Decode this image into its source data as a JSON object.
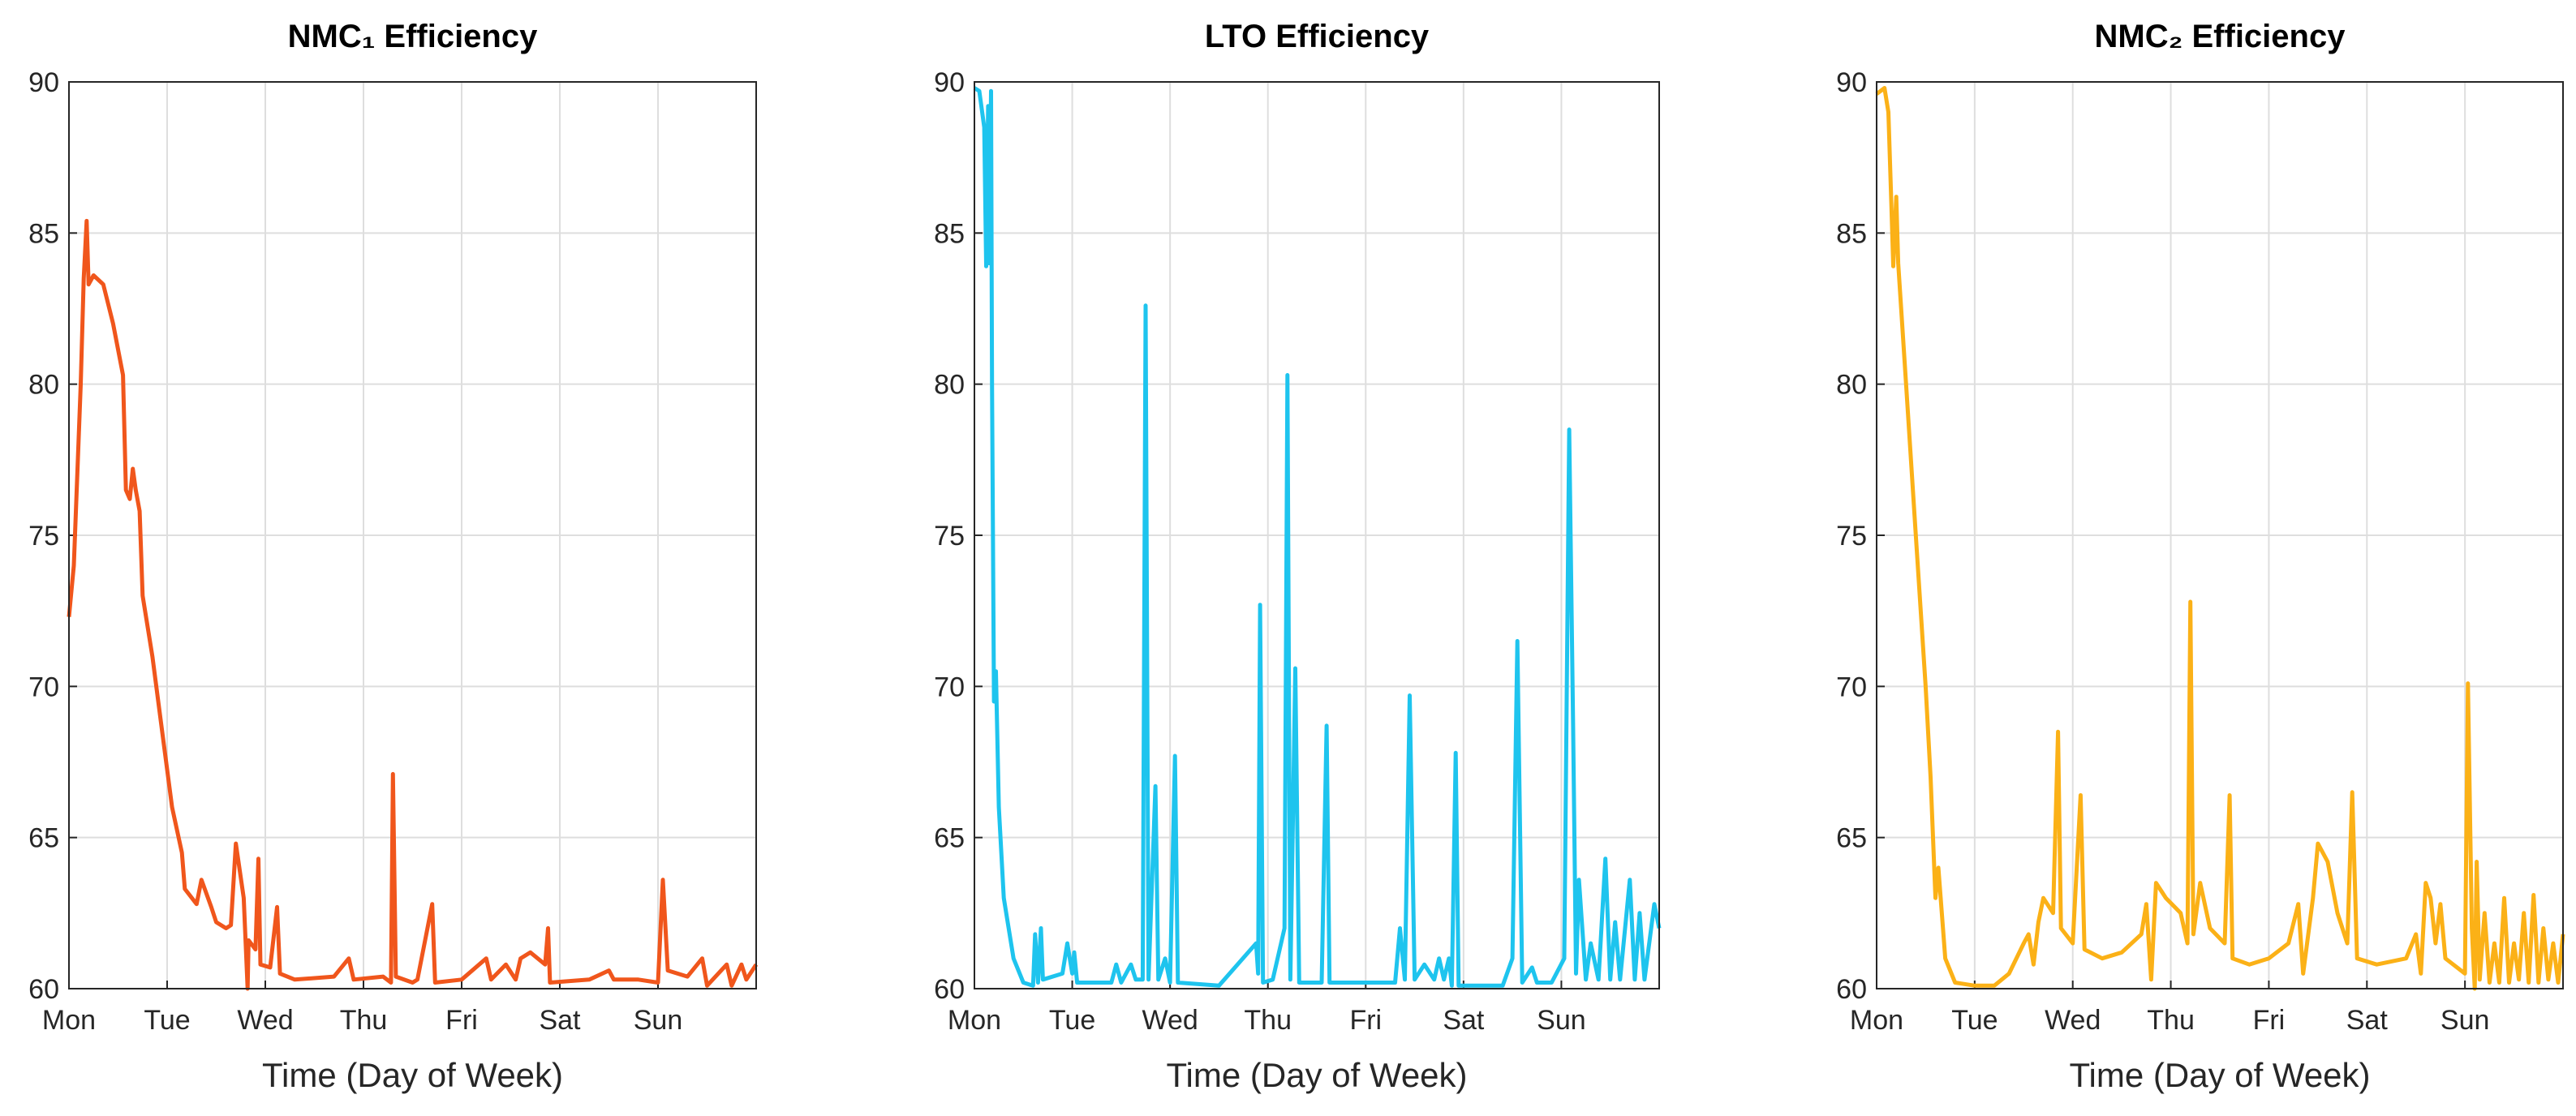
{
  "chart_data": [
    {
      "type": "line",
      "title": "NMC₁ Efficiency",
      "xlabel": "Time (Day of Week)",
      "grid": true,
      "xlim": [
        0,
        7
      ],
      "ylim": [
        60,
        90
      ],
      "xticks": [
        {
          "value": 0,
          "label": "Mon"
        },
        {
          "value": 1,
          "label": "Tue"
        },
        {
          "value": 2,
          "label": "Wed"
        },
        {
          "value": 3,
          "label": "Thu"
        },
        {
          "value": 4,
          "label": "Fri"
        },
        {
          "value": 5,
          "label": "Sat"
        },
        {
          "value": 6,
          "label": "Sun"
        }
      ],
      "yticks": [
        60,
        65,
        70,
        75,
        80,
        85,
        90
      ],
      "x": [
        0,
        0.05,
        0.12,
        0.15,
        0.18,
        0.2,
        0.25,
        0.35,
        0.45,
        0.55,
        0.58,
        0.62,
        0.65,
        0.68,
        0.72,
        0.75,
        0.85,
        0.95,
        1.05,
        1.15,
        1.18,
        1.3,
        1.35,
        1.45,
        1.5,
        1.6,
        1.65,
        1.7,
        1.78,
        1.82,
        1.83,
        1.9,
        1.93,
        1.95,
        2.05,
        2.12,
        2.15,
        2.3,
        2.7,
        2.85,
        2.9,
        3.2,
        3.28,
        3.3,
        3.33,
        3.5,
        3.55,
        3.7,
        3.73,
        4.0,
        4.25,
        4.3,
        4.45,
        4.55,
        4.6,
        4.7,
        4.85,
        4.88,
        4.9,
        5.3,
        5.5,
        5.55,
        5.8,
        6.0,
        6.05,
        6.1,
        6.3,
        6.45,
        6.5,
        6.7,
        6.75,
        6.85,
        6.9,
        7
      ],
      "series": [
        {
          "color": "#f0561c",
          "values": [
            72.3,
            74,
            80,
            83.5,
            85.4,
            83.3,
            83.6,
            83.3,
            82,
            80.3,
            76.5,
            76.2,
            77.2,
            76.5,
            75.8,
            73,
            71,
            68.5,
            66,
            64.5,
            63.3,
            62.8,
            63.6,
            62.7,
            62.2,
            62,
            62.1,
            64.8,
            63,
            60,
            61.6,
            61.3,
            64.3,
            60.8,
            60.7,
            62.7,
            60.5,
            60.3,
            60.4,
            61,
            60.3,
            60.4,
            60.2,
            67.1,
            60.4,
            60.2,
            60.3,
            62.8,
            60.2,
            60.3,
            61,
            60.3,
            60.8,
            60.3,
            61,
            61.2,
            60.8,
            62,
            60.2,
            60.3,
            60.6,
            60.3,
            60.3,
            60.2,
            63.6,
            60.6,
            60.4,
            61,
            60.1,
            60.8,
            60.1,
            60.8,
            60.3,
            60.8
          ]
        }
      ]
    },
    {
      "type": "line",
      "title": "LTO Efficiency",
      "xlabel": "Time (Day of Week)",
      "grid": true,
      "xlim": [
        0,
        7
      ],
      "ylim": [
        60,
        90
      ],
      "xticks": [
        {
          "value": 0,
          "label": "Mon"
        },
        {
          "value": 1,
          "label": "Tue"
        },
        {
          "value": 2,
          "label": "Wed"
        },
        {
          "value": 3,
          "label": "Thu"
        },
        {
          "value": 4,
          "label": "Fri"
        },
        {
          "value": 5,
          "label": "Sat"
        },
        {
          "value": 6,
          "label": "Sun"
        }
      ],
      "yticks": [
        60,
        65,
        70,
        75,
        80,
        85,
        90
      ],
      "x": [
        0,
        0.05,
        0.1,
        0.12,
        0.14,
        0.15,
        0.17,
        0.18,
        0.2,
        0.22,
        0.25,
        0.3,
        0.4,
        0.5,
        0.6,
        0.62,
        0.65,
        0.68,
        0.7,
        0.9,
        0.95,
        1.0,
        1.02,
        1.05,
        1.4,
        1.45,
        1.5,
        1.6,
        1.65,
        1.72,
        1.75,
        1.78,
        1.85,
        1.88,
        1.95,
        2.0,
        2.05,
        2.08,
        2.5,
        2.88,
        2.9,
        2.92,
        2.95,
        3.05,
        3.17,
        3.2,
        3.23,
        3.28,
        3.32,
        3.55,
        3.6,
        3.63,
        4.3,
        4.35,
        4.4,
        4.45,
        4.5,
        4.6,
        4.7,
        4.75,
        4.8,
        4.85,
        4.88,
        4.92,
        4.95,
        5.4,
        5.5,
        5.55,
        5.6,
        5.7,
        5.75,
        5.9,
        6.03,
        6.08,
        6.12,
        6.15,
        6.18,
        6.25,
        6.3,
        6.38,
        6.45,
        6.5,
        6.55,
        6.6,
        6.7,
        6.75,
        6.8,
        6.85,
        6.95,
        7
      ],
      "series": [
        {
          "color": "#1ec4ee",
          "values": [
            89.8,
            89.7,
            88.5,
            83.9,
            89.2,
            84,
            89.7,
            80,
            69.5,
            70.5,
            66,
            63,
            61,
            60.2,
            60.1,
            61.8,
            60.2,
            62,
            60.3,
            60.5,
            61.5,
            60.5,
            61.2,
            60.2,
            60.2,
            60.8,
            60.2,
            60.8,
            60.3,
            60.3,
            82.6,
            60.3,
            66.7,
            60.3,
            61,
            60.2,
            67.7,
            60.2,
            60.1,
            61.5,
            60.5,
            72.7,
            60.2,
            60.3,
            62,
            80.3,
            60.3,
            70.6,
            60.2,
            60.2,
            68.7,
            60.2,
            60.2,
            62,
            60.3,
            69.7,
            60.3,
            60.8,
            60.3,
            61,
            60.3,
            61,
            60.1,
            67.8,
            60.1,
            60.1,
            61,
            71.5,
            60.2,
            60.7,
            60.2,
            60.2,
            61,
            78.5,
            68.7,
            60.5,
            63.6,
            60.3,
            61.5,
            60.3,
            64.3,
            60.3,
            62.2,
            60.3,
            63.6,
            60.3,
            62.5,
            60.3,
            62.8,
            62
          ]
        }
      ]
    },
    {
      "type": "line",
      "title": "NMC₂ Efficiency",
      "xlabel": "Time (Day of Week)",
      "grid": true,
      "xlim": [
        0,
        7
      ],
      "ylim": [
        60,
        90
      ],
      "xticks": [
        {
          "value": 0,
          "label": "Mon"
        },
        {
          "value": 1,
          "label": "Tue"
        },
        {
          "value": 2,
          "label": "Wed"
        },
        {
          "value": 3,
          "label": "Thu"
        },
        {
          "value": 4,
          "label": "Fri"
        },
        {
          "value": 5,
          "label": "Sat"
        },
        {
          "value": 6,
          "label": "Sun"
        }
      ],
      "yticks": [
        60,
        65,
        70,
        75,
        80,
        85,
        90
      ],
      "x": [
        0,
        0.08,
        0.12,
        0.15,
        0.17,
        0.2,
        0.22,
        0.3,
        0.4,
        0.5,
        0.55,
        0.6,
        0.63,
        0.7,
        0.8,
        1.0,
        1.2,
        1.35,
        1.5,
        1.55,
        1.6,
        1.65,
        1.7,
        1.8,
        1.85,
        1.88,
        2.0,
        2.08,
        2.12,
        2.3,
        2.5,
        2.7,
        2.75,
        2.8,
        2.85,
        2.95,
        3.1,
        3.17,
        3.2,
        3.23,
        3.3,
        3.4,
        3.55,
        3.6,
        3.63,
        3.8,
        4.0,
        4.2,
        4.3,
        4.35,
        4.45,
        4.5,
        4.6,
        4.7,
        4.8,
        4.85,
        4.9,
        5.1,
        5.4,
        5.5,
        5.55,
        5.6,
        5.65,
        5.7,
        5.75,
        5.8,
        6.0,
        6.03,
        6.07,
        6.1,
        6.12,
        6.15,
        6.2,
        6.25,
        6.3,
        6.35,
        6.4,
        6.45,
        6.5,
        6.55,
        6.6,
        6.65,
        6.7,
        6.75,
        6.8,
        6.85,
        6.9,
        6.95,
        7
      ],
      "series": [
        {
          "color": "#fbb117",
          "values": [
            89.6,
            89.8,
            89,
            86,
            83.9,
            86.2,
            84,
            80,
            75,
            70,
            67,
            63,
            64,
            61,
            60.2,
            60.1,
            60.1,
            60.5,
            61.5,
            61.8,
            60.8,
            62.2,
            63,
            62.5,
            68.5,
            62,
            61.5,
            66.4,
            61.3,
            61,
            61.2,
            61.8,
            62.8,
            60.3,
            63.5,
            63,
            62.5,
            61.5,
            72.8,
            61.8,
            63.5,
            62,
            61.5,
            66.4,
            61,
            60.8,
            61,
            61.5,
            62.8,
            60.5,
            63,
            64.8,
            64.2,
            62.5,
            61.5,
            66.5,
            61,
            60.8,
            61,
            61.8,
            60.5,
            63.5,
            63,
            61.5,
            62.8,
            61,
            60.5,
            70.1,
            62,
            60,
            64.2,
            60.3,
            62.5,
            60.2,
            61.5,
            60.2,
            63,
            60.2,
            61.5,
            60.3,
            62.5,
            60.2,
            63.1,
            60.2,
            62,
            60.3,
            61.5,
            60.2,
            61.8
          ]
        }
      ]
    }
  ]
}
